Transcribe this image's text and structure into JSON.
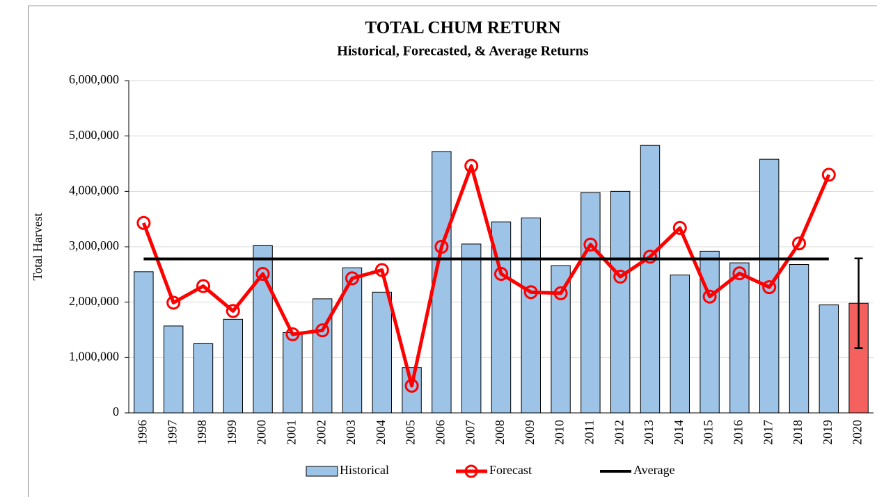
{
  "chart_data": {
    "type": "combo",
    "title": "TOTAL  CHUM RETURN",
    "subtitle": "Historical, Forecasted, & Average Returns",
    "y_label": "Total Harvest",
    "categories": [
      "1996",
      "1997",
      "1998",
      "1999",
      "2000",
      "2001",
      "2002",
      "2003",
      "2004",
      "2005",
      "2006",
      "2007",
      "2008",
      "2009",
      "2010",
      "2011",
      "2012",
      "2013",
      "2014",
      "2015",
      "2016",
      "2017",
      "2018",
      "2019",
      "2020"
    ],
    "series": [
      {
        "name": "Historical",
        "type": "bar",
        "color": "#9dc3e6",
        "values": [
          2550000,
          1570000,
          1250000,
          1690000,
          3020000,
          1450000,
          2060000,
          2620000,
          2180000,
          820000,
          4720000,
          3050000,
          3450000,
          3520000,
          2660000,
          3980000,
          4000000,
          4830000,
          2490000,
          2920000,
          2710000,
          4580000,
          2680000,
          1950000,
          null
        ]
      },
      {
        "name": "Forecast",
        "type": "line",
        "color": "#ff0000",
        "marker": "circle",
        "values": [
          3430000,
          1990000,
          2290000,
          1840000,
          2510000,
          1420000,
          1490000,
          2430000,
          2580000,
          490000,
          3000000,
          4460000,
          2510000,
          2180000,
          2160000,
          3040000,
          2460000,
          2820000,
          3340000,
          2100000,
          2520000,
          2270000,
          3060000,
          4300000,
          null
        ]
      },
      {
        "name": "Average",
        "type": "line",
        "color": "#000000",
        "values": [
          2780000,
          2780000,
          2780000,
          2780000,
          2780000,
          2780000,
          2780000,
          2780000,
          2780000,
          2780000,
          2780000,
          2780000,
          2780000,
          2780000,
          2780000,
          2780000,
          2780000,
          2780000,
          2780000,
          2780000,
          2780000,
          2780000,
          2780000,
          2780000,
          null
        ]
      }
    ],
    "projection": {
      "type": "bar",
      "color": "#f4615f",
      "values": [
        null,
        null,
        null,
        null,
        null,
        null,
        null,
        null,
        null,
        null,
        null,
        null,
        null,
        null,
        null,
        null,
        null,
        null,
        null,
        null,
        null,
        null,
        null,
        null,
        1980000
      ],
      "errors": [
        null,
        null,
        null,
        null,
        null,
        null,
        null,
        null,
        null,
        null,
        null,
        null,
        null,
        null,
        null,
        null,
        null,
        null,
        null,
        null,
        null,
        null,
        null,
        null,
        810000
      ]
    },
    "ylim": [
      0,
      6000000
    ],
    "yticks": [
      0,
      {
        "value": 1000000,
        "label": "1,000,000"
      },
      {
        "value": 2000000,
        "label": "2,000,000"
      },
      {
        "value": 3000000,
        "label": "3,000,000"
      },
      {
        "value": 4000000,
        "label": "4,000,000"
      },
      {
        "value": 5000000,
        "label": "5,000,000"
      },
      {
        "value": 6000000,
        "label": "6,000,000"
      }
    ],
    "grid": true,
    "legend": "bottom"
  }
}
